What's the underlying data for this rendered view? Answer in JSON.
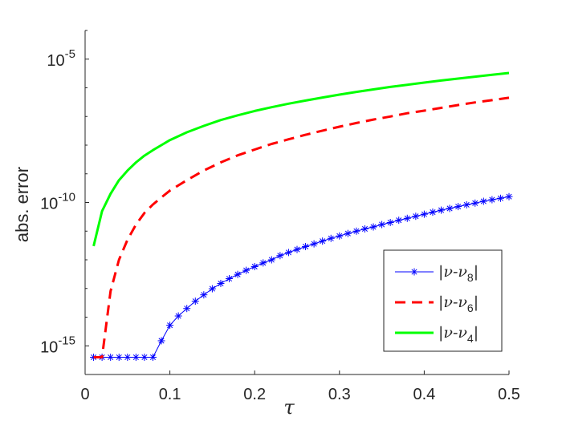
{
  "chart_data": {
    "type": "line",
    "title": "",
    "xlabel": "τ",
    "ylabel": "abs. error",
    "y_scale": "log",
    "xlim": [
      0,
      0.5
    ],
    "ylim": [
      1e-16,
      0.0001
    ],
    "x_ticks": [
      {
        "value": 0,
        "label": "0"
      },
      {
        "value": 0.1,
        "label": "0.1"
      },
      {
        "value": 0.2,
        "label": "0.2"
      },
      {
        "value": 0.3,
        "label": "0.3"
      },
      {
        "value": 0.4,
        "label": "0.4"
      },
      {
        "value": 0.5,
        "label": "0.5"
      }
    ],
    "y_ticks": [
      {
        "value": 1e-15,
        "base": "10",
        "exp": "-15"
      },
      {
        "value": 1e-10,
        "base": "10",
        "exp": "-10"
      },
      {
        "value": 1e-05,
        "base": "10",
        "exp": "-5"
      }
    ],
    "grid": false,
    "legend_position": "bottom-right",
    "series": [
      {
        "name": "|ν-ν8|",
        "legend": {
          "base": "|ν-ν",
          "sub": "8",
          "end": "|"
        },
        "color": "#0000ff",
        "style": "solid",
        "marker": "asterisk",
        "x": [
          0.01,
          0.02,
          0.03,
          0.04,
          0.05,
          0.06,
          0.07,
          0.08,
          0.09,
          0.1,
          0.11,
          0.12,
          0.13,
          0.14,
          0.15,
          0.16,
          0.17,
          0.18,
          0.19,
          0.2,
          0.21,
          0.22,
          0.23,
          0.24,
          0.25,
          0.26,
          0.27,
          0.28,
          0.29,
          0.3,
          0.31,
          0.32,
          0.33,
          0.34,
          0.35,
          0.36,
          0.37,
          0.38,
          0.39,
          0.4,
          0.41,
          0.42,
          0.43,
          0.44,
          0.45,
          0.46,
          0.47,
          0.48,
          0.49,
          0.5
        ],
        "y": [
          4e-16,
          4e-16,
          4e-16,
          4e-16,
          4e-16,
          4e-16,
          4e-16,
          4e-16,
          1.5e-15,
          5.2e-15,
          1.1e-14,
          2e-14,
          3.6e-14,
          6e-14,
          9.8e-14,
          1.5e-13,
          2.2e-13,
          3.1e-13,
          4.3e-13,
          5.8e-13,
          7.8e-13,
          1e-12,
          1.4e-12,
          1.8e-12,
          2.3e-12,
          2.9e-12,
          3.6e-12,
          4.5e-12,
          5.6e-12,
          6.8e-12,
          8.3e-12,
          1e-11,
          1.2e-11,
          1.4e-11,
          1.7e-11,
          2e-11,
          2.4e-11,
          2.8e-11,
          3.3e-11,
          3.9e-11,
          4.6e-11,
          5.4e-11,
          6.2e-11,
          7.2e-11,
          8.3e-11,
          9.5e-11,
          1.1e-10,
          1.25e-10,
          1.4e-10,
          1.6e-10
        ]
      },
      {
        "name": "|ν-ν6|",
        "legend": {
          "base": "|ν-ν",
          "sub": "6",
          "end": "|"
        },
        "color": "#ff0000",
        "style": "dashed",
        "marker": "none",
        "x": [
          0.01,
          0.02,
          0.03,
          0.04,
          0.05,
          0.06,
          0.07,
          0.08,
          0.09,
          0.1,
          0.12,
          0.14,
          0.16,
          0.18,
          0.2,
          0.22,
          0.24,
          0.26,
          0.28,
          0.3,
          0.32,
          0.34,
          0.36,
          0.38,
          0.4,
          0.42,
          0.44,
          0.46,
          0.48,
          0.5
        ],
        "y": [
          4e-16,
          4e-16,
          8e-14,
          1e-12,
          5e-12,
          1.7e-11,
          4.3e-11,
          8.5e-11,
          1.5e-10,
          2.6e-10,
          6e-10,
          1.3e-09,
          2.5e-09,
          4.4e-09,
          7e-09,
          1.1e-08,
          1.6e-08,
          2.3e-08,
          3.2e-08,
          4.4e-08,
          5.9e-08,
          7.8e-08,
          1e-07,
          1.3e-07,
          1.6e-07,
          2e-07,
          2.5e-07,
          3.1e-07,
          3.7e-07,
          4.5e-07
        ]
      },
      {
        "name": "|ν-ν4|",
        "legend": {
          "base": "|ν-ν",
          "sub": "4",
          "end": "|"
        },
        "color": "#00ff00",
        "style": "solid",
        "marker": "none",
        "x": [
          0.01,
          0.02,
          0.03,
          0.04,
          0.05,
          0.06,
          0.07,
          0.08,
          0.09,
          0.1,
          0.12,
          0.14,
          0.16,
          0.18,
          0.2,
          0.22,
          0.24,
          0.26,
          0.28,
          0.3,
          0.32,
          0.34,
          0.36,
          0.38,
          0.4,
          0.42,
          0.44,
          0.46,
          0.48,
          0.5
        ],
        "y": [
          3e-12,
          5e-11,
          2e-10,
          6e-10,
          1.3e-09,
          2.5e-09,
          4.3e-09,
          6.7e-09,
          1e-08,
          1.5e-08,
          2.8e-08,
          4.7e-08,
          7.5e-08,
          1.1e-07,
          1.55e-07,
          2.1e-07,
          2.8e-07,
          3.6e-07,
          4.6e-07,
          5.8e-07,
          7.2e-07,
          8.8e-07,
          1.07e-06,
          1.28e-06,
          1.52e-06,
          1.8e-06,
          2.1e-06,
          2.45e-06,
          2.85e-06,
          3.3e-06
        ]
      }
    ]
  }
}
